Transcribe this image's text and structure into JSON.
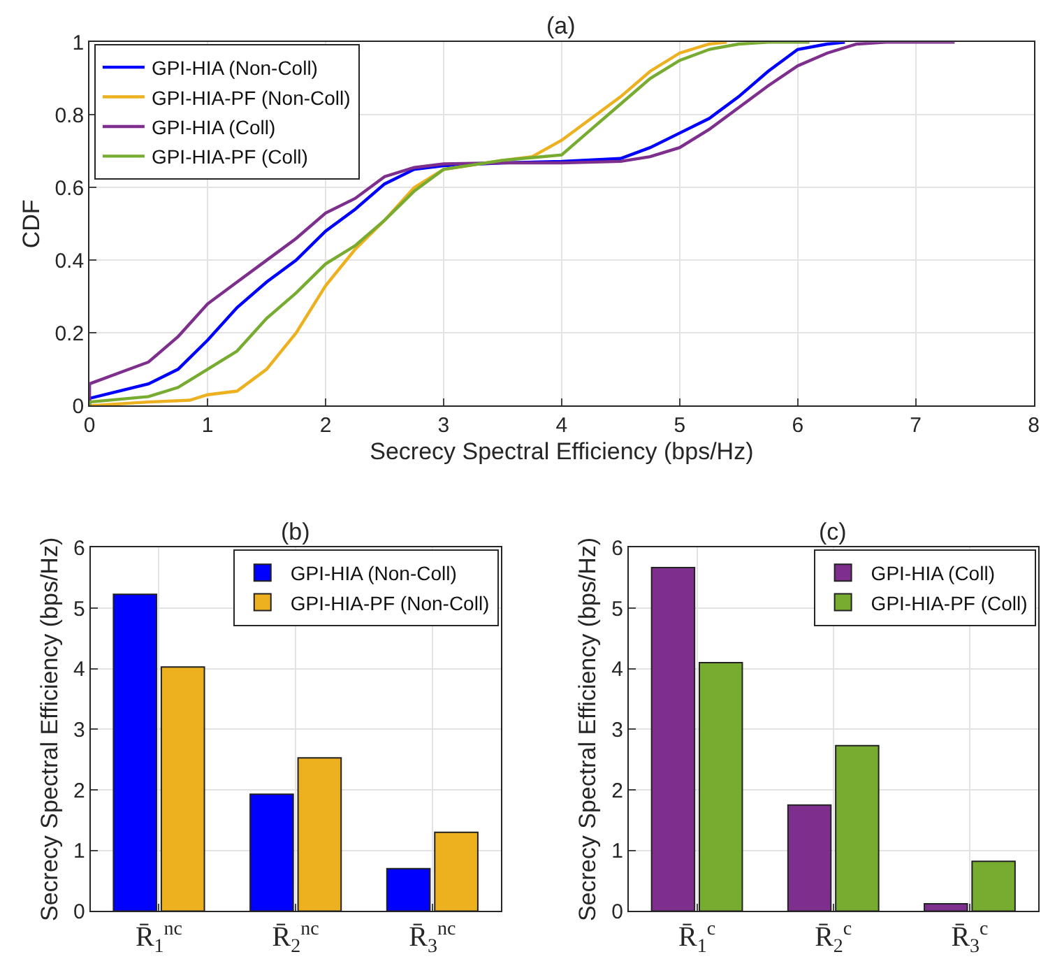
{
  "chart_data": [
    {
      "type": "line",
      "title": "(a)",
      "xlabel": "Secrecy Spectral Efficiency (bps/Hz)",
      "ylabel": "CDF",
      "xlim": [
        0,
        8
      ],
      "xticks": [
        0,
        1,
        2,
        3,
        4,
        5,
        6,
        7,
        8
      ],
      "ylim": [
        0,
        1
      ],
      "yticks": [
        0,
        0.2,
        0.4,
        0.6,
        0.8,
        1
      ],
      "grid": true,
      "legend": "top left",
      "line_style": "solid",
      "series": [
        {
          "name": "GPI-HIA (Non-Coll)",
          "color": "#0000ff",
          "x": [
            0,
            0,
            0.5,
            0.75,
            1,
            1.25,
            1.5,
            1.75,
            2,
            2.25,
            2.5,
            2.75,
            3,
            3.5,
            4,
            4.5,
            4.75,
            5,
            5.25,
            5.5,
            5.75,
            6,
            6.25,
            6.4
          ],
          "values": [
            0,
            0.02,
            0.06,
            0.1,
            0.18,
            0.27,
            0.34,
            0.4,
            0.48,
            0.54,
            0.61,
            0.65,
            0.66,
            0.668,
            0.672,
            0.68,
            0.71,
            0.75,
            0.79,
            0.85,
            0.92,
            0.98,
            0.995,
            1
          ]
        },
        {
          "name": "GPI-HIA-PF (Non-Coll)",
          "color": "#edb120",
          "x": [
            0,
            0.5,
            0.85,
            1,
            1.25,
            1.5,
            1.75,
            2,
            2.25,
            2.5,
            2.75,
            3,
            3.5,
            3.75,
            4,
            4.25,
            4.5,
            4.75,
            5,
            5.25,
            5.4
          ],
          "values": [
            0,
            0.01,
            0.015,
            0.03,
            0.04,
            0.1,
            0.2,
            0.33,
            0.43,
            0.51,
            0.6,
            0.65,
            0.675,
            0.685,
            0.73,
            0.79,
            0.85,
            0.92,
            0.97,
            0.995,
            1
          ]
        },
        {
          "name": "GPI-HIA (Coll)",
          "color": "#7e2f8e",
          "x": [
            0,
            0,
            0.25,
            0.5,
            0.75,
            1,
            1.25,
            1.5,
            1.75,
            2,
            2.25,
            2.5,
            2.75,
            3,
            3.5,
            4,
            4.5,
            4.75,
            5,
            5.25,
            5.5,
            5.75,
            6,
            6.25,
            6.5,
            6.75,
            7.33
          ],
          "values": [
            0,
            0.06,
            0.09,
            0.12,
            0.19,
            0.28,
            0.34,
            0.4,
            0.46,
            0.53,
            0.57,
            0.63,
            0.655,
            0.665,
            0.668,
            0.668,
            0.672,
            0.685,
            0.71,
            0.76,
            0.82,
            0.88,
            0.935,
            0.97,
            0.995,
            1,
            1
          ]
        },
        {
          "name": "GPI-HIA-PF (Coll)",
          "color": "#77ac30",
          "x": [
            0,
            0,
            0.5,
            0.75,
            1,
            1.25,
            1.5,
            1.75,
            2,
            2.25,
            2.5,
            2.75,
            3,
            3.5,
            4,
            4.25,
            4.5,
            4.75,
            5,
            5.25,
            5.5,
            5.75,
            6.1
          ],
          "values": [
            0,
            0.01,
            0.025,
            0.05,
            0.1,
            0.15,
            0.24,
            0.31,
            0.39,
            0.44,
            0.51,
            0.59,
            0.65,
            0.675,
            0.69,
            0.76,
            0.83,
            0.9,
            0.95,
            0.98,
            0.995,
            1,
            1
          ]
        }
      ]
    },
    {
      "type": "bar",
      "title": "(b)",
      "ylabel": "Secrecy Spectral Efficiency (bps/Hz)",
      "categories": [
        "R̄$_{1}$$^{nc}$",
        "R̄$_{2}$$^{nc}$",
        "R̄$_{3}$$^{nc}$"
      ],
      "ylim": [
        0,
        6
      ],
      "yticks": [
        0,
        1,
        2,
        3,
        4,
        5,
        6
      ],
      "grid": true,
      "legend": "top right",
      "series": [
        {
          "name": "GPI-HIA (Non-Coll)",
          "color": "#0000ff",
          "values": [
            5.23,
            1.93,
            0.7
          ]
        },
        {
          "name": "GPI-HIA-PF (Non-Coll)",
          "color": "#edb120",
          "values": [
            4.03,
            2.53,
            1.3
          ]
        }
      ]
    },
    {
      "type": "bar",
      "title": "(c)",
      "ylabel": "Secrecy Spectral Efficiency (bps/Hz)",
      "categories": [
        "R̄$_{1}$$^{c}$",
        "R̄$_{2}$$^{c}$",
        "R̄$_{3}$$^{c}$"
      ],
      "ylim": [
        0,
        6
      ],
      "yticks": [
        0,
        1,
        2,
        3,
        4,
        5,
        6
      ],
      "grid": true,
      "legend": "top right",
      "series": [
        {
          "name": "GPI-HIA (Coll)",
          "color": "#7e2f8e",
          "values": [
            5.67,
            1.75,
            0.12
          ]
        },
        {
          "name": "GPI-HIA-PF (Coll)",
          "color": "#77ac30",
          "values": [
            4.1,
            2.73,
            0.82
          ]
        }
      ]
    }
  ]
}
